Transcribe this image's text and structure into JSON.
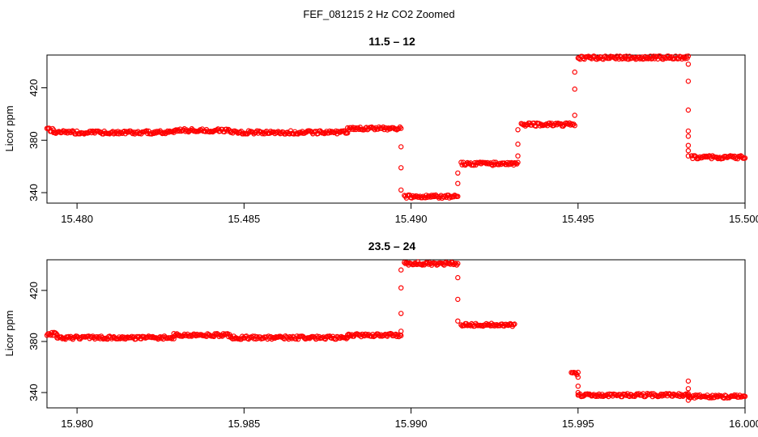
{
  "figure": {
    "title": "FEF_081215  2 Hz CO2 Zoomed"
  },
  "style": {
    "point_color": "#ff0000",
    "axis_color": "#000000",
    "background": "#ffffff"
  },
  "chart_data": [
    {
      "type": "scatter",
      "title": "11.5 – 12",
      "xlabel": "",
      "ylabel": "Licor ppm",
      "xlim": [
        15.4791,
        15.5
      ],
      "ylim": [
        332,
        445
      ],
      "grid": false,
      "xticks": [
        "15.480",
        "15.485",
        "15.490",
        "15.495",
        "15.500"
      ],
      "xtick_values": [
        15.48,
        15.485,
        15.49,
        15.495,
        15.5
      ],
      "yticks": [
        "340",
        "380",
        "420"
      ],
      "ytick_values": [
        340,
        380,
        420
      ],
      "marker": "open-circle",
      "segments": [
        {
          "x_start": 15.4791,
          "x_end": 15.4793,
          "y": 388
        },
        {
          "x_start": 15.4793,
          "x_end": 15.4829,
          "y": 386
        },
        {
          "x_start": 15.4829,
          "x_end": 15.4846,
          "y": 387.5
        },
        {
          "x_start": 15.4846,
          "x_end": 15.4881,
          "y": 386
        },
        {
          "x_start": 15.4881,
          "x_end": 15.4897,
          "y": 389
        },
        {
          "x_start": 15.4898,
          "x_end": 15.4914,
          "y": 337
        },
        {
          "x_start": 15.4915,
          "x_end": 15.4932,
          "y": 362
        },
        {
          "x_start": 15.4933,
          "x_end": 15.4949,
          "y": 392
        },
        {
          "x_start": 15.495,
          "x_end": 15.4983,
          "y": 443
        },
        {
          "x_start": 15.4984,
          "x_end": 15.5,
          "y": 367
        }
      ],
      "transitions": [
        {
          "x": 15.4897,
          "y": [
            375,
            359,
            342
          ]
        },
        {
          "x": 15.4914,
          "y": [
            347,
            355
          ]
        },
        {
          "x": 15.4932,
          "y": [
            368,
            377,
            388
          ]
        },
        {
          "x": 15.4949,
          "y": [
            399,
            419,
            432
          ]
        },
        {
          "x": 15.4983,
          "y": [
            438,
            425,
            403,
            387,
            383,
            376,
            372,
            368
          ]
        }
      ]
    },
    {
      "type": "scatter",
      "title": "23.5 – 24",
      "xlabel": "",
      "ylabel": "Licor ppm",
      "xlim": [
        15.9791,
        16.0
      ],
      "ylim": [
        328,
        444
      ],
      "grid": false,
      "xticks": [
        "15.980",
        "15.985",
        "15.990",
        "15.995",
        "16.000"
      ],
      "xtick_values": [
        15.98,
        15.985,
        15.99,
        15.995,
        16.0
      ],
      "yticks": [
        "340",
        "380",
        "420"
      ],
      "ytick_values": [
        340,
        380,
        420
      ],
      "marker": "open-circle",
      "segments": [
        {
          "x_start": 15.9791,
          "x_end": 15.9794,
          "y": 386
        },
        {
          "x_start": 15.9794,
          "x_end": 15.9829,
          "y": 383
        },
        {
          "x_start": 15.9829,
          "x_end": 15.9846,
          "y": 385
        },
        {
          "x_start": 15.9846,
          "x_end": 15.9881,
          "y": 383
        },
        {
          "x_start": 15.9881,
          "x_end": 15.9897,
          "y": 385
        },
        {
          "x_start": 15.9898,
          "x_end": 15.9914,
          "y": 441
        },
        {
          "x_start": 15.9915,
          "x_end": 15.9931,
          "y": 393
        },
        {
          "x_start": 15.9948,
          "x_end": 15.995,
          "y": 355
        },
        {
          "x_start": 15.995,
          "x_end": 15.9983,
          "y": 338
        },
        {
          "x_start": 15.9983,
          "x_end": 16.0,
          "y": 337
        }
      ],
      "transitions": [
        {
          "x": 15.9897,
          "y": [
            388,
            402,
            422,
            436
          ]
        },
        {
          "x": 15.9914,
          "y": [
            430,
            413,
            396
          ]
        },
        {
          "x": 15.995,
          "y": [
            352,
            345,
            340
          ]
        },
        {
          "x": 15.9983,
          "y": [
            349,
            343,
            339,
            334
          ]
        }
      ]
    }
  ]
}
